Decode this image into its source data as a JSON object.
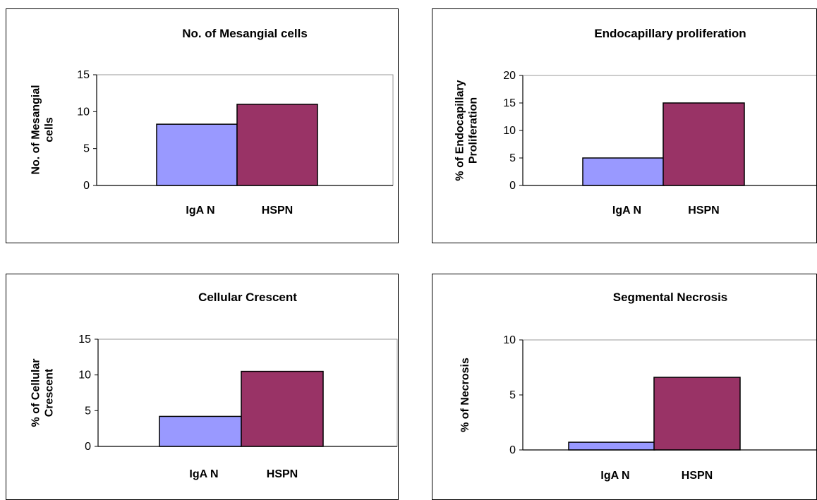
{
  "chart_data": [
    {
      "type": "bar",
      "title": "No. of Mesangial cells",
      "ylabel_lines": [
        "No. of Mesangial",
        "cells"
      ],
      "xlabel": "",
      "categories": [
        "IgA N",
        "HSPN"
      ],
      "values": [
        8.3,
        11
      ],
      "ylim": [
        0,
        15
      ],
      "yticks": [
        0,
        5,
        10,
        15
      ],
      "colors": [
        "#9999ff",
        "#993366"
      ],
      "grid": false,
      "legend": "none"
    },
    {
      "type": "bar",
      "title": "Endocapillary proliferation",
      "ylabel_lines": [
        "% of Endocapillary",
        "Proliferation"
      ],
      "xlabel": "",
      "categories": [
        "IgA N",
        "HSPN"
      ],
      "values": [
        5,
        15
      ],
      "ylim": [
        0,
        20
      ],
      "yticks": [
        0,
        5,
        10,
        15,
        20
      ],
      "colors": [
        "#9999ff",
        "#993366"
      ],
      "grid": false,
      "legend": "none"
    },
    {
      "type": "bar",
      "title": "Cellular Crescent",
      "ylabel_lines": [
        "% of Cellular",
        "Crescent"
      ],
      "xlabel": "",
      "categories": [
        "IgA N",
        "HSPN"
      ],
      "values": [
        4.2,
        10.5
      ],
      "ylim": [
        0,
        15
      ],
      "yticks": [
        0,
        5,
        10,
        15
      ],
      "colors": [
        "#9999ff",
        "#993366"
      ],
      "grid": false,
      "legend": "none"
    },
    {
      "type": "bar",
      "title": "Segmental Necrosis",
      "ylabel_lines": [
        "% of Necrosis"
      ],
      "xlabel": "",
      "categories": [
        "IgA N",
        "HSPN"
      ],
      "values": [
        0.7,
        6.6
      ],
      "ylim": [
        0,
        10
      ],
      "yticks": [
        0,
        5,
        10
      ],
      "colors": [
        "#9999ff",
        "#993366"
      ],
      "grid": false,
      "legend": "none"
    }
  ]
}
